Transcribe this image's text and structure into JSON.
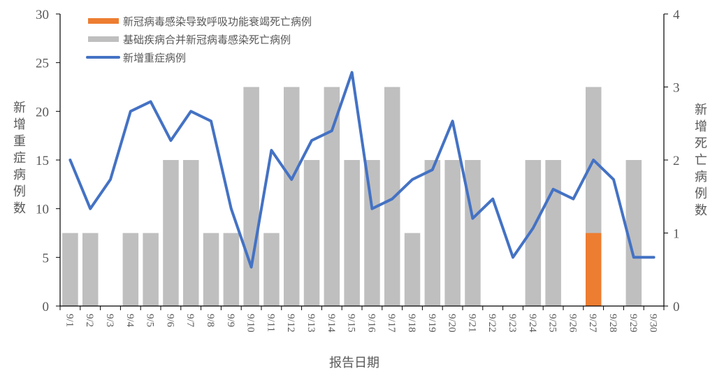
{
  "chart_data": {
    "type": "bar+line",
    "title": "",
    "xlabel": "报告日期",
    "ylabel_left": "新增重症病例数",
    "ylabel_right": "新增死亡病例数",
    "ylim_left": [
      0,
      30
    ],
    "ylim_right": [
      0,
      4
    ],
    "yticks_left": [
      0,
      5,
      10,
      15,
      20,
      25,
      30
    ],
    "yticks_right": [
      0,
      1,
      2,
      3,
      4
    ],
    "grid": false,
    "legend_position": "top-left-inside",
    "categories": [
      "9/1",
      "9/2",
      "9/3",
      "9/4",
      "9/5",
      "9/6",
      "9/7",
      "9/8",
      "9/9",
      "9/10",
      "9/11",
      "9/12",
      "9/13",
      "9/14",
      "9/15",
      "9/16",
      "9/17",
      "9/18",
      "9/19",
      "9/20",
      "9/21",
      "9/22",
      "9/23",
      "9/24",
      "9/25",
      "9/26",
      "9/27",
      "9/28",
      "9/29",
      "9/30"
    ],
    "series": [
      {
        "name": "新冠病毒感染导致呼吸功能衰竭死亡病例",
        "type": "stacked-bar",
        "axis": "right",
        "color": "#ED7D31",
        "values": [
          0,
          0,
          0,
          0,
          0,
          0,
          0,
          0,
          0,
          0,
          0,
          0,
          0,
          0,
          0,
          0,
          0,
          0,
          0,
          0,
          0,
          0,
          0,
          0,
          0,
          0,
          1,
          0,
          0,
          0
        ]
      },
      {
        "name": "基础疾病合并新冠病毒感染死亡病例",
        "type": "stacked-bar",
        "axis": "right",
        "color": "#BFBFBF",
        "values": [
          1,
          1,
          0,
          1,
          1,
          2,
          2,
          1,
          1,
          3,
          1,
          3,
          2,
          3,
          2,
          2,
          3,
          1,
          2,
          2,
          2,
          0,
          0,
          2,
          2,
          0,
          2,
          0,
          2,
          0
        ]
      },
      {
        "name": "新增重症病例",
        "type": "line",
        "axis": "left",
        "color": "#4472C4",
        "values": [
          15,
          10,
          13,
          20,
          21,
          17,
          20,
          19,
          10,
          4,
          16,
          13,
          17,
          18,
          24,
          10,
          11,
          13,
          14,
          19,
          9,
          11,
          5,
          8,
          12,
          11,
          15,
          13,
          5,
          5
        ]
      }
    ]
  }
}
